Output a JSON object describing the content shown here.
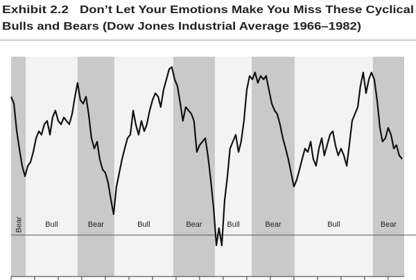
{
  "chart_data": {
    "type": "line",
    "exhibit": "Exhibit 2.2",
    "title_lines": [
      "Don’t Let Your Emotions Make You Miss These Cyclical",
      "Bulls and Bears (Dow Jones Industrial Average 1966–1982)"
    ],
    "color": "#111111",
    "xlim": [
      1966,
      1982.68
    ],
    "ylim": [
      505,
      1077
    ],
    "xticks": [
      1966,
      1967,
      1968,
      1969,
      1970,
      1971,
      1972,
      1973,
      1974,
      1975,
      1976,
      1977,
      1978,
      1979,
      1980,
      1981,
      1982
    ],
    "reference_line": 613,
    "regions": [
      {
        "label": "Bear",
        "start": 1966.0,
        "end": 1966.62,
        "color": "#c9c9c9"
      },
      {
        "label": "Bull",
        "start": 1966.62,
        "end": 1968.82,
        "color": "#f3f3f3"
      },
      {
        "label": "Bear",
        "start": 1968.82,
        "end": 1970.38,
        "color": "#c9c9c9"
      },
      {
        "label": "Bull",
        "start": 1970.38,
        "end": 1972.88,
        "color": "#f3f3f3"
      },
      {
        "label": "Bear",
        "start": 1972.88,
        "end": 1974.65,
        "color": "#c9c9c9"
      },
      {
        "label": "Bull",
        "start": 1974.65,
        "end": 1976.21,
        "color": "#f3f3f3"
      },
      {
        "label": "Bear",
        "start": 1976.21,
        "end": 1978.03,
        "color": "#c9c9c9"
      },
      {
        "label": "Bull",
        "start": 1978.03,
        "end": 1981.35,
        "color": "#f3f3f3"
      },
      {
        "label": "Bear",
        "start": 1981.35,
        "end": 1982.68,
        "color": "#c9c9c9"
      }
    ],
    "x": [
      1966.0,
      1966.12,
      1966.24,
      1966.35,
      1966.47,
      1966.59,
      1966.71,
      1966.82,
      1966.94,
      1967.06,
      1967.18,
      1967.29,
      1967.41,
      1967.53,
      1967.65,
      1967.76,
      1967.88,
      1968.0,
      1968.12,
      1968.24,
      1968.35,
      1968.47,
      1968.59,
      1968.71,
      1968.82,
      1968.94,
      1969.06,
      1969.18,
      1969.29,
      1969.41,
      1969.53,
      1969.65,
      1969.76,
      1969.88,
      1970.0,
      1970.12,
      1970.24,
      1970.35,
      1970.47,
      1970.59,
      1970.71,
      1970.82,
      1970.94,
      1971.06,
      1971.18,
      1971.29,
      1971.41,
      1971.53,
      1971.65,
      1971.76,
      1971.88,
      1972.0,
      1972.12,
      1972.24,
      1972.35,
      1972.47,
      1972.59,
      1972.71,
      1972.82,
      1972.94,
      1973.06,
      1973.18,
      1973.29,
      1973.41,
      1973.53,
      1973.65,
      1973.76,
      1973.88,
      1974.0,
      1974.12,
      1974.24,
      1974.35,
      1974.47,
      1974.59,
      1974.71,
      1974.82,
      1974.94,
      1975.06,
      1975.18,
      1975.29,
      1975.41,
      1975.53,
      1975.65,
      1975.76,
      1975.88,
      1976.0,
      1976.12,
      1976.24,
      1976.35,
      1976.47,
      1976.59,
      1976.71,
      1976.82,
      1976.94,
      1977.06,
      1977.18,
      1977.29,
      1977.41,
      1977.53,
      1977.65,
      1977.76,
      1977.88,
      1978.0,
      1978.12,
      1978.24,
      1978.35,
      1978.47,
      1978.59,
      1978.71,
      1978.82,
      1978.94,
      1979.06,
      1979.18,
      1979.29,
      1979.41,
      1979.53,
      1979.65,
      1979.76,
      1979.88,
      1980.0,
      1980.12,
      1980.24,
      1980.35,
      1980.47,
      1980.59,
      1980.71,
      1980.82,
      1980.94,
      1981.06,
      1981.18,
      1981.29,
      1981.41,
      1981.53,
      1981.65,
      1981.76,
      1981.88,
      1982.0,
      1982.12,
      1982.24,
      1982.35,
      1982.47,
      1982.59
    ],
    "values": [
      973,
      955,
      883,
      838,
      793,
      766,
      793,
      802,
      829,
      865,
      883,
      874,
      901,
      910,
      874,
      919,
      937,
      910,
      901,
      919,
      910,
      901,
      928,
      973,
      1009,
      964,
      955,
      973,
      928,
      865,
      838,
      856,
      811,
      784,
      775,
      748,
      703,
      667,
      739,
      775,
      811,
      838,
      865,
      874,
      937,
      901,
      874,
      910,
      883,
      901,
      937,
      964,
      982,
      973,
      946,
      991,
      1018,
      1045,
      1050,
      1018,
      1000,
      955,
      910,
      946,
      937,
      928,
      910,
      829,
      847,
      856,
      865,
      820,
      757,
      685,
      586,
      631,
      586,
      703,
      766,
      838,
      856,
      874,
      829,
      856,
      910,
      991,
      1027,
      1018,
      1036,
      1009,
      1027,
      1018,
      1027,
      991,
      955,
      937,
      928,
      901,
      865,
      838,
      811,
      775,
      739,
      757,
      784,
      811,
      838,
      829,
      856,
      811,
      793,
      838,
      865,
      820,
      847,
      874,
      883,
      847,
      820,
      838,
      820,
      793,
      847,
      910,
      928,
      946,
      1000,
      1036,
      982,
      1018,
      1036,
      1018,
      964,
      892,
      856,
      865,
      892,
      874,
      838,
      847,
      820,
      811
    ]
  }
}
